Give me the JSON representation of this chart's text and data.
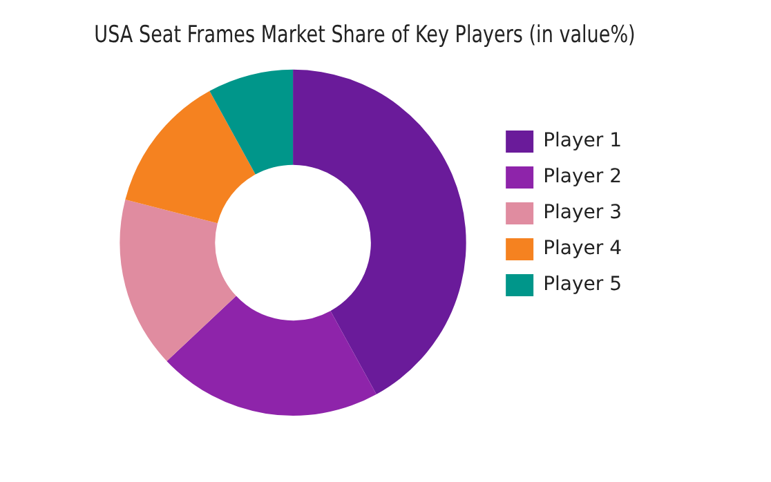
{
  "chart_data": {
    "type": "donut",
    "title": "USA Seat Frames Market Share of Key Players (in value%)",
    "categories": [
      "Player 1",
      "Player 2",
      "Player 3",
      "Player 4",
      "Player 5"
    ],
    "values": [
      42,
      21,
      16,
      13,
      8
    ],
    "colors": [
      "#6a1b9a",
      "#8e24aa",
      "#e08ca0",
      "#f58220",
      "#00968a"
    ],
    "legend": "right"
  }
}
